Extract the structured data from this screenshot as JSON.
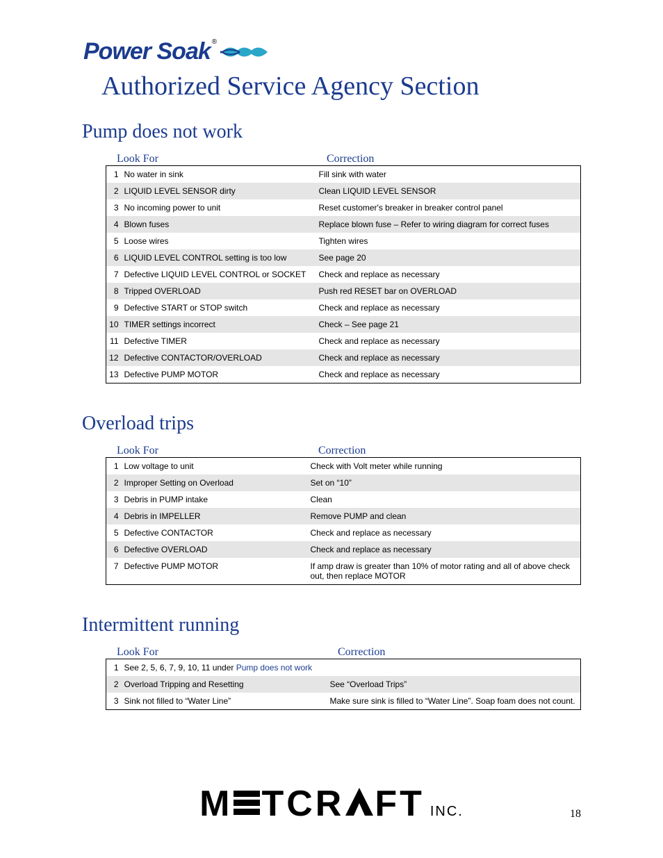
{
  "logo": {
    "text1": "Power",
    "text2": " Soak",
    "reg": "®"
  },
  "title": "Authorized Service Agency Section",
  "page_number": "18",
  "sections": [
    {
      "title": "Pump does not work",
      "lookfor_label": "Look For",
      "correction_label": "Correction",
      "col_widths": {
        "look": 280
      },
      "rows": [
        {
          "n": "1",
          "look": "No water in sink",
          "corr": "Fill sink with water"
        },
        {
          "n": "2",
          "look": "LIQUID LEVEL SENSOR dirty",
          "corr": "Clean LIQUID LEVEL SENSOR"
        },
        {
          "n": "3",
          "look": "No incoming power to unit",
          "corr": "Reset customer's breaker in breaker control panel"
        },
        {
          "n": "4",
          "look": "Blown fuses",
          "corr": "Replace blown fuse – Refer to wiring diagram for correct fuses"
        },
        {
          "n": "5",
          "look": "Loose wires",
          "corr": "Tighten wires"
        },
        {
          "n": "6",
          "look": "LIQUID LEVEL CONTROL setting is too low",
          "corr": "See page 20"
        },
        {
          "n": "7",
          "look": "Defective LIQUID LEVEL CONTROL or SOCKET",
          "corr": "Check and replace as necessary"
        },
        {
          "n": "8",
          "look": "Tripped OVERLOAD",
          "corr": "Push red RESET bar on OVERLOAD"
        },
        {
          "n": "9",
          "look": "Defective START or STOP switch",
          "corr": "Check and replace as necessary"
        },
        {
          "n": "10",
          "look": "TIMER settings incorrect",
          "corr": "Check – See page 21"
        },
        {
          "n": "11",
          "look": "Defective TIMER",
          "corr": "Check and replace as necessary"
        },
        {
          "n": "12",
          "look": "Defective CONTACTOR/OVERLOAD",
          "corr": "Check and replace as necessary"
        },
        {
          "n": "13",
          "look": "Defective PUMP MOTOR",
          "corr": "Check and replace as necessary"
        }
      ]
    },
    {
      "title": "Overload trips",
      "lookfor_label": "Look For",
      "correction_label": "Correction",
      "col_widths": {
        "look": 268
      },
      "rows": [
        {
          "n": "1",
          "look": "Low voltage to unit",
          "corr": "Check with Volt meter while running"
        },
        {
          "n": "2",
          "look": "Improper Setting on Overload",
          "corr": "Set on “10”"
        },
        {
          "n": "3",
          "look": "Debris in PUMP intake",
          "corr": "Clean"
        },
        {
          "n": "4",
          "look": "Debris in IMPELLER",
          "corr": "Remove PUMP and clean"
        },
        {
          "n": "5",
          "look": "Defective CONTACTOR",
          "corr": "Check and replace as necessary"
        },
        {
          "n": "6",
          "look": "Defective OVERLOAD",
          "corr": "Check and replace as necessary"
        },
        {
          "n": "7",
          "look": "Defective PUMP MOTOR",
          "corr": "If amp draw is greater than 10% of motor rating and all of above check out, then replace MOTOR"
        }
      ]
    },
    {
      "title": "Intermittent running",
      "lookfor_label": "Look For",
      "correction_label": "Correction",
      "col_widths": {
        "look": 296
      },
      "link_text": "Pump does not work",
      "rows": [
        {
          "n": "1",
          "look_prefix": "See 2, 5, 6, 7, 9, 10, 11 under ",
          "look_link": "Pump does not work",
          "corr": ""
        },
        {
          "n": "2",
          "look": "Overload Tripping and Resetting",
          "corr": "See “Overload Trips”"
        },
        {
          "n": "3",
          "look": "Sink not filled to “Water Line”",
          "corr": "Make sure sink is filled to “Water Line”.  Soap foam does not count."
        }
      ]
    }
  ],
  "footer_logo": {
    "word": "METCRAFT",
    "inc": "INC."
  },
  "colors": {
    "brand_blue": "#1a3b8e",
    "shade_gray": "#e5e5e5",
    "text": "#000000",
    "cyan_swirl": "#2aa6c9"
  }
}
